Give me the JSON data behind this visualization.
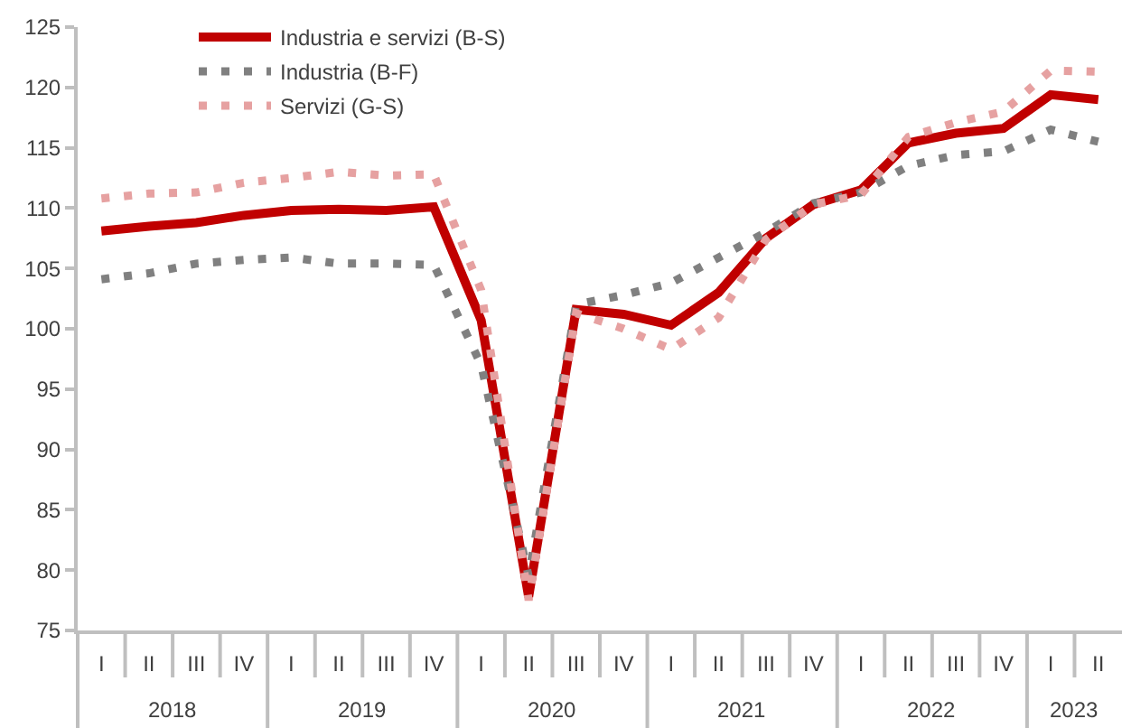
{
  "chart_data": {
    "type": "line",
    "categories": [
      "I",
      "II",
      "III",
      "IV",
      "I",
      "II",
      "III",
      "IV",
      "I",
      "II",
      "III",
      "IV",
      "I",
      "II",
      "III",
      "IV",
      "I",
      "II",
      "III",
      "IV",
      "I",
      "II"
    ],
    "series": [
      {
        "name": "Industria e servizi (B-S)",
        "color": "#c00000",
        "line_style": "solid",
        "values": [
          108.1,
          108.5,
          108.8,
          109.4,
          109.8,
          109.9,
          109.8,
          110.1,
          100.7,
          77.8,
          101.6,
          101.2,
          100.3,
          103.0,
          107.5,
          110.3,
          111.5,
          115.4,
          116.2,
          116.6,
          119.4,
          119.0
        ]
      },
      {
        "name": "Industria (B-F)",
        "color": "#808080",
        "line_style": "dotted",
        "values": [
          104.1,
          104.6,
          105.4,
          105.7,
          105.9,
          105.4,
          105.4,
          105.3,
          97.0,
          79.5,
          102.0,
          102.8,
          103.8,
          105.9,
          108.0,
          110.4,
          111.3,
          113.5,
          114.4,
          114.7,
          116.5,
          115.5
        ]
      },
      {
        "name": "Servizi (G-S)",
        "color": "#e6a1a1",
        "line_style": "dotted",
        "values": [
          110.8,
          111.2,
          111.3,
          112.1,
          112.5,
          113.0,
          112.7,
          112.8,
          103.2,
          77.5,
          101.3,
          100.0,
          98.3,
          100.9,
          107.4,
          110.3,
          111.1,
          115.9,
          117.1,
          118.0,
          121.4,
          121.3
        ]
      }
    ],
    "ylim": [
      75,
      125
    ],
    "yticks": [
      75,
      80,
      85,
      90,
      95,
      100,
      105,
      110,
      115,
      120,
      125
    ],
    "legend": "top left",
    "annotations": [
      "2018",
      "2019",
      "2020",
      "2021",
      "2022",
      "2023"
    ]
  }
}
